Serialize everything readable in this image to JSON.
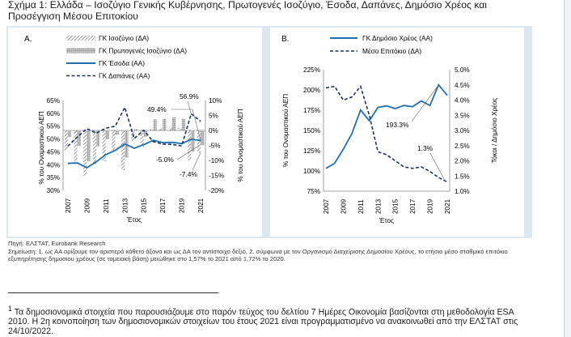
{
  "title": "Σχήμα 1: Ελλάδα – Ισοζύγιο Γενικής Κυβέρνησης, Πρωτογενές Ισοζύγιο, Έσοδα, Δαπάνες, Δημόσιο Χρέος και Προσέγγιση Μέσου Επιτοκίου",
  "colors": {
    "blue": "#1f6fb4",
    "navy": "#1b2f66",
    "gray": "#9a9a9a",
    "panel_bg": "#dde7f0"
  },
  "chart_data": [
    {
      "panel_label": "A.",
      "type": "bar+line",
      "legend": {
        "balance": "ΓΚ Ισοζύγιο (ΔΑ)",
        "primary": "ΓΚ Πρωτογενές Ισοζύγιο (ΔΑ)",
        "revenue": "ΓΚ Έσοδα (ΑΑ)",
        "expenditure": "ΓΚ Δαπάνες (ΑΑ)"
      },
      "xlabel": "Έτος",
      "ylabel_left": "% του Ονομαστικού ΑΕΠ",
      "ylabel_right": "% του Ονομαστικού ΑΕΠ",
      "ylim_left": [
        30,
        65
      ],
      "yticks_left": [
        "30%",
        "35%",
        "40%",
        "45%",
        "50%",
        "55%",
        "60%",
        "65%"
      ],
      "ylim_right": [
        -20,
        10
      ],
      "yticks_right": [
        "-20%",
        "-15%",
        "-10%",
        "-5%",
        "0%",
        "5%",
        "10%"
      ],
      "x_ticklabels": [
        "2007",
        "2009",
        "2011",
        "2013",
        "2015",
        "2017",
        "2019",
        "2021"
      ],
      "years": [
        2007,
        2008,
        2009,
        2010,
        2011,
        2012,
        2013,
        2014,
        2015,
        2016,
        2017,
        2018,
        2019,
        2020,
        2021
      ],
      "series": [
        {
          "name": "ΓΚ Ισοζύγιο (ΔΑ)",
          "axis": "right",
          "kind": "bar",
          "values": [
            -6.7,
            -10.2,
            -15.1,
            -11.2,
            -10.3,
            -6.6,
            -13.2,
            -3.6,
            -5.6,
            0.5,
            0.7,
            0.9,
            0.9,
            -9.9,
            -7.4
          ]
        },
        {
          "name": "ΓΚ Πρωτογενές Ισοζύγιο (ΔΑ)",
          "axis": "right",
          "kind": "bar",
          "values": [
            -2.2,
            -5.2,
            -10.2,
            -5.3,
            -3.0,
            -1.4,
            -9.1,
            0.4,
            -2.0,
            3.7,
            3.9,
            4.3,
            3.9,
            -7.1,
            -5.0
          ]
        },
        {
          "name": "ΓΚ Έσοδα (ΑΑ)",
          "axis": "left",
          "kind": "line",
          "values": [
            40.5,
            40.7,
            38.8,
            41.1,
            43.9,
            45.6,
            48.1,
            46.4,
            47.8,
            49.5,
            48.6,
            48.7,
            48.2,
            49.9,
            49.4
          ]
        },
        {
          "name": "ΓΚ Δαπάνες (ΑΑ)",
          "axis": "left",
          "kind": "line",
          "values": [
            47.2,
            50.8,
            54.0,
            52.3,
            54.2,
            55.0,
            62.3,
            50.2,
            53.4,
            49.0,
            48.0,
            47.9,
            47.3,
            59.8,
            56.9
          ]
        }
      ],
      "annotations": [
        "49.4%",
        "56.9%",
        "-5.0%",
        "-7.4%"
      ]
    },
    {
      "panel_label": "B.",
      "type": "line",
      "legend": {
        "debt": "ΓΚ Δημόσιο Χρέος (ΑΑ)",
        "rate": "Μέσο Επιτόκιο (ΔΑ)"
      },
      "xlabel": "Έτος",
      "ylabel_left": "% του Ονομαστικού ΑΕΠ",
      "ylabel_right": "Τόκοι / Δημόσιο Χρέος",
      "ylim_left": [
        75,
        225
      ],
      "yticks_left": [
        "75%",
        "100%",
        "125%",
        "150%",
        "175%",
        "200%",
        "225%"
      ],
      "ylim_right": [
        1.0,
        5.0
      ],
      "yticks_right": [
        "1.0%",
        "1.5%",
        "2.0%",
        "2.5%",
        "3.0%",
        "3.5%",
        "4.0%",
        "4.5%",
        "5.0%"
      ],
      "x_ticklabels": [
        "2007",
        "2009",
        "2011",
        "2013",
        "2015",
        "2017",
        "2019",
        "2021"
      ],
      "years": [
        2007,
        2008,
        2009,
        2010,
        2011,
        2012,
        2013,
        2014,
        2015,
        2016,
        2017,
        2018,
        2019,
        2020,
        2021
      ],
      "series": [
        {
          "name": "ΓΚ Δημόσιο Χρέος (ΑΑ)",
          "axis": "left",
          "values": [
            103.1,
            109.4,
            126.7,
            146.2,
            175.2,
            161.9,
            178.4,
            180.3,
            177.0,
            180.8,
            179.3,
            186.4,
            180.7,
            206.3,
            193.3
          ]
        },
        {
          "name": "Μέσο Επιτόκιο (ΔΑ)",
          "axis": "right",
          "values": [
            4.4,
            4.45,
            4.0,
            4.1,
            4.45,
            3.5,
            2.3,
            2.2,
            2.0,
            1.8,
            1.75,
            1.8,
            1.65,
            1.45,
            1.3
          ]
        }
      ],
      "annotations": [
        "193.3%",
        "1.3%"
      ]
    }
  ],
  "notes": {
    "source": "Πηγή: ΕΛΣΤΑΤ, Eurobank Research",
    "remarks": "Σημείωση: 1. ως ΑΑ ορίζουμε τον αριστερό κάθετο άξονα και ως ΔΑ τον αντίστοιχο δεξιό, 2. σύμφωνα με τον Οργανισμό Διαχείρισης Δημοσίου Χρέους, το ετήσιο μέσο σταθμικό επιτόκιο εξυπηρέτησης δημοσίου χρέους (σε ταμειακή βάση) μειώθηκε στο 1,57% το 2021 από 1,72% το 2020."
  },
  "footnote": {
    "marker": "1",
    "text": "Τα δημοσιονομικά στοιχεία που παρουσιάζουμε στο παρόν τεύχος του δελτίου 7 Ημέρες Οικονομία βασίζονται στη μεθοδολογία ESA 2010. Η 2η κοινοποίηση των δημοσιονομικών στοιχείων του έτους 2021 είναι προγραμματισμένο να ανακοινωθεί από την ΕΛΣΤΑΤ στις 24/10/2022."
  }
}
